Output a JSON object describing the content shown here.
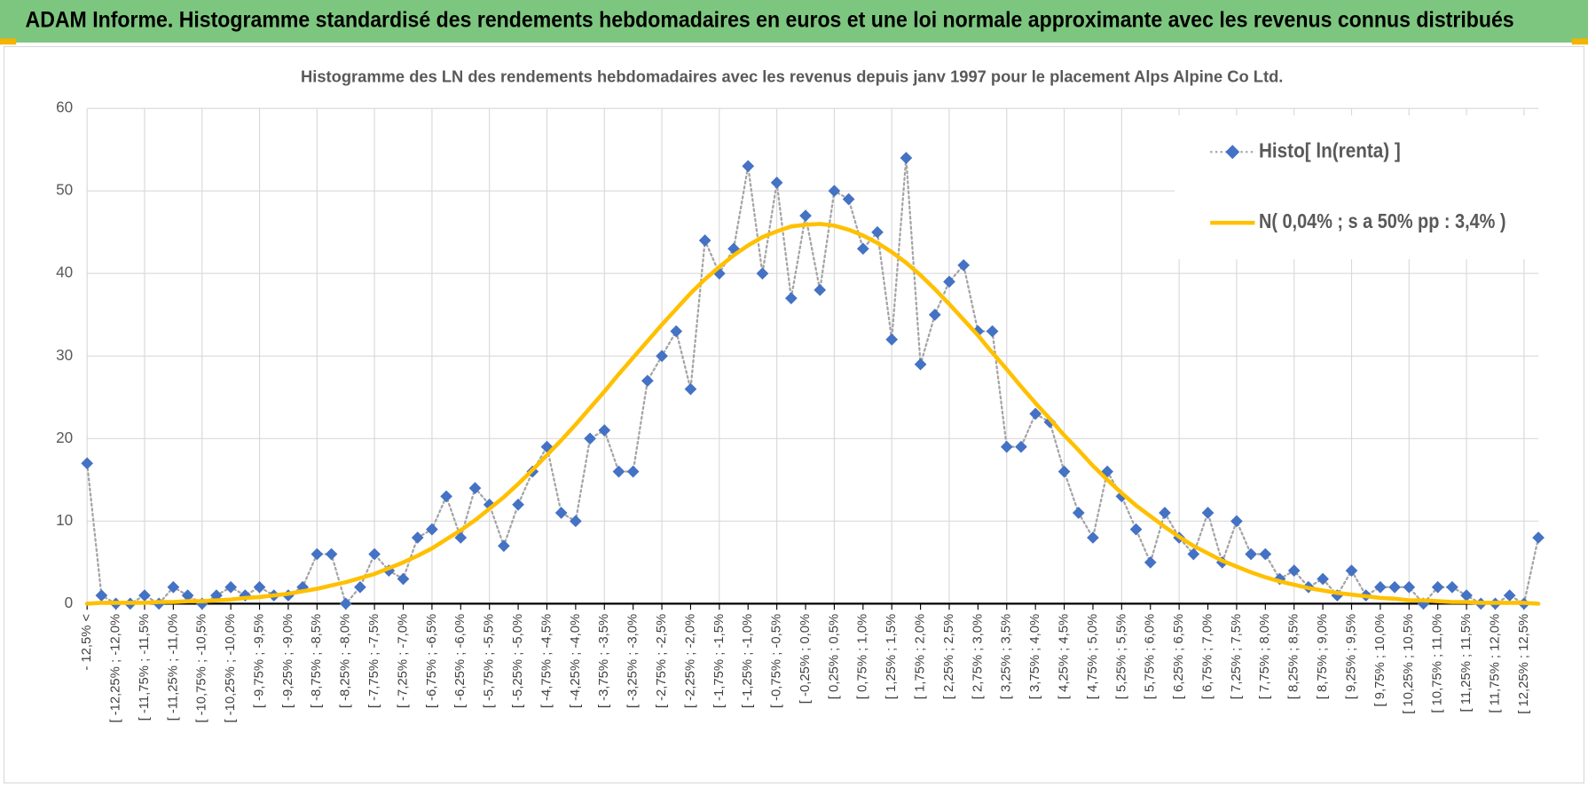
{
  "title": "ADAM Informe. Histogramme standardisé des rendements hebdomadaires en euros et une loi normale approximante avec les revenus connus distribués",
  "chart_data": {
    "type": "line",
    "title": "Histogramme  des LN des rendements hebdomadaires avec les revenus depuis janv 1997 pour le placement Alps Alpine Co Ltd.",
    "categories": [
      "- 12,5% <",
      null,
      "[ -12,25% ; -12,0%",
      null,
      "[ -11,75% ; -11,5%",
      null,
      "[ -11,25% ; -11,0%",
      null,
      "[ -10,75% ; -10,5%",
      null,
      "[ -10,25% ; -10,0%",
      null,
      "[ -9,75% ; -9,5%",
      null,
      "[ -9,25% ; -9,0%",
      null,
      "[ -8,75% ; -8,5%",
      null,
      "[ -8,25% ; -8,0%",
      null,
      "[ -7,75% ; -7,5%",
      null,
      "[ -7,25% ; -7,0%",
      null,
      "[ -6,75% ; -6,5%",
      null,
      "[ -6,25% ; -6,0%",
      null,
      "[ -5,75% ; -5,5%",
      null,
      "[ -5,25% ; -5,0%",
      null,
      "[ -4,75% ; -4,5%",
      null,
      "[ -4,25% ; -4,0%",
      null,
      "[ -3,75% ; -3,5%",
      null,
      "[ -3,25% ; -3,0%",
      null,
      "[ -2,75% ; -2,5%",
      null,
      "[ -2,25% ; -2,0%",
      null,
      "[ -1,75% ; -1,5%",
      null,
      "[ -1,25% ; -1,0%",
      null,
      "[ -0,75% ; -0,5%",
      null,
      "[ -0,25% ; 0,0%",
      null,
      "[ 0,25% ; 0,5%",
      null,
      "[ 0,75% ; 1,0%",
      null,
      "[ 1,25% ; 1,5%",
      null,
      "[ 1,75% ; 2,0%",
      null,
      "[ 2,25% ; 2,5%",
      null,
      "[ 2,75% ; 3,0%",
      null,
      "[ 3,25% ; 3,5%",
      null,
      "[ 3,75% ; 4,0%",
      null,
      "[ 4,25% ; 4,5%",
      null,
      "[ 4,75% ; 5,0%",
      null,
      "[ 5,25% ; 5,5%",
      null,
      "[ 5,75% ; 6,0%",
      null,
      "[ 6,25% ; 6,5%",
      null,
      "[ 6,75% ; 7,0%",
      null,
      "[ 7,25% ; 7,5%",
      null,
      "[ 7,75% ; 8,0%",
      null,
      "[ 8,25% ; 8,5%",
      null,
      "[ 8,75% ; 9,0%",
      null,
      "[ 9,25% ; 9,5%",
      null,
      "[ 9,75% ; 10,0%",
      null,
      "[ 10,25% ; 10,5%",
      null,
      "[ 10,75% ; 11,0%",
      null,
      "[ 11,25% ; 11,5%",
      null,
      "[ 11,75% ; 12,0%",
      null,
      "[ 12,25% ; 12,5%",
      null
    ],
    "series": [
      {
        "name": "Histo[ ln(renta) ]",
        "color": "#4472c4",
        "line_color": "#a5a5a5",
        "marker": "diamond",
        "line_style": "dotted",
        "values": [
          17,
          1,
          0,
          0,
          1,
          0,
          2,
          1,
          0,
          1,
          2,
          1,
          2,
          1,
          1,
          2,
          6,
          6,
          0,
          2,
          6,
          4,
          3,
          8,
          9,
          13,
          8,
          14,
          12,
          7,
          12,
          16,
          19,
          11,
          10,
          20,
          21,
          16,
          16,
          27,
          30,
          33,
          26,
          44,
          40,
          43,
          53,
          40,
          51,
          37,
          47,
          38,
          50,
          49,
          43,
          45,
          32,
          54,
          29,
          35,
          39,
          41,
          33,
          33,
          19,
          19,
          23,
          22,
          16,
          11,
          8,
          16,
          13,
          9,
          5,
          11,
          8,
          6,
          11,
          5,
          10,
          6,
          6,
          3,
          4,
          2,
          3,
          1,
          4,
          1,
          2,
          2,
          2,
          0,
          2,
          2,
          1,
          0,
          0,
          1,
          0,
          8
        ]
      },
      {
        "name": "N( 0,04% ; s a 50% pp : 3,4% )",
        "color": "#ffc000",
        "marker": "none",
        "line_style": "solid",
        "values": [
          0.0,
          0.1,
          0.1,
          0.1,
          0.1,
          0.2,
          0.2,
          0.3,
          0.3,
          0.4,
          0.5,
          0.7,
          0.8,
          1.0,
          1.2,
          1.5,
          1.8,
          2.2,
          2.6,
          3.1,
          3.6,
          4.3,
          5.0,
          5.8,
          6.7,
          7.8,
          8.9,
          10.1,
          11.5,
          12.9,
          14.5,
          16.2,
          18.0,
          19.8,
          21.7,
          23.7,
          25.7,
          27.8,
          29.8,
          31.8,
          33.8,
          35.7,
          37.6,
          39.3,
          40.8,
          42.2,
          43.4,
          44.4,
          45.1,
          45.7,
          45.9,
          46.0,
          45.8,
          45.3,
          44.6,
          43.7,
          42.6,
          41.3,
          39.8,
          38.1,
          36.3,
          34.4,
          32.5,
          30.4,
          28.4,
          26.3,
          24.3,
          22.4,
          20.4,
          18.6,
          16.7,
          15.0,
          13.4,
          11.9,
          10.6,
          9.3,
          8.1,
          7.0,
          6.1,
          5.2,
          4.5,
          3.8,
          3.2,
          2.7,
          2.3,
          1.9,
          1.6,
          1.3,
          1.1,
          0.9,
          0.7,
          0.6,
          0.4,
          0.4,
          0.3,
          0.2,
          0.2,
          0.1,
          0.1,
          0.1,
          0.1,
          0.0
        ]
      }
    ],
    "ylim": [
      0,
      60
    ],
    "yticks": [
      0,
      10,
      20,
      30,
      40,
      50,
      60
    ],
    "grid": true,
    "legend": "top-right"
  }
}
